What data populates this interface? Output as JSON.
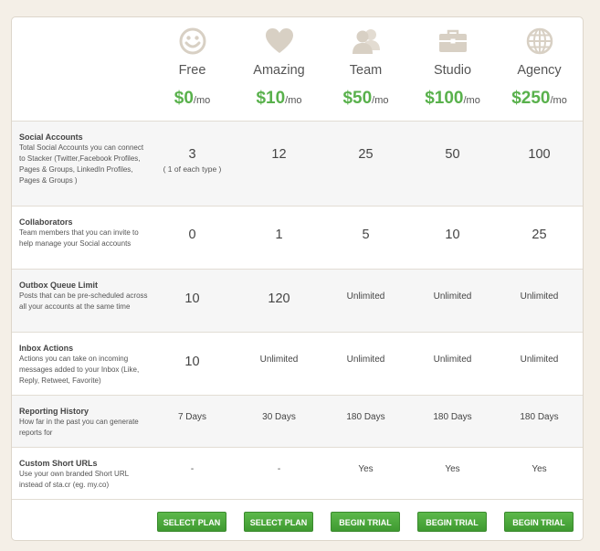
{
  "plans": [
    {
      "name": "Free",
      "price": "$0",
      "period": "/mo",
      "icon": "smiley-icon",
      "button": "SELECT PLAN"
    },
    {
      "name": "Amazing",
      "price": "$10",
      "period": "/mo",
      "icon": "heart-icon",
      "button": "SELECT PLAN"
    },
    {
      "name": "Team",
      "price": "$50",
      "period": "/mo",
      "icon": "team-icon",
      "button": "BEGIN TRIAL"
    },
    {
      "name": "Studio",
      "price": "$100",
      "period": "/mo",
      "icon": "briefcase-icon",
      "button": "BEGIN TRIAL"
    },
    {
      "name": "Agency",
      "price": "$250",
      "period": "/mo",
      "icon": "globe-icon",
      "button": "BEGIN TRIAL"
    }
  ],
  "features": [
    {
      "title": "Social Accounts",
      "desc": "Total Social Accounts you can connect to Stacker (Twitter,Facebook Profiles, Pages & Groups, LinkedIn Profiles, Pages & Groups )",
      "values": [
        "3",
        "12",
        "25",
        "50",
        "100"
      ],
      "note": "( 1 of each type )"
    },
    {
      "title": "Collaborators",
      "desc": "Team members that you can invite to help manage your Social accounts",
      "values": [
        "0",
        "1",
        "5",
        "10",
        "25"
      ]
    },
    {
      "title": "Outbox Queue Limit",
      "desc": "Posts that can be pre-scheduled across all your accounts at the same time",
      "values": [
        "10",
        "120",
        "Unlimited",
        "Unlimited",
        "Unlimited"
      ]
    },
    {
      "title": "Inbox Actions",
      "desc": "Actions you can take on incoming messages added to your Inbox (Like, Reply, Retweet, Favorite)",
      "values": [
        "10",
        "Unlimited",
        "Unlimited",
        "Unlimited",
        "Unlimited"
      ]
    },
    {
      "title": "Reporting History",
      "desc": "How far in the past you can generate reports for",
      "values": [
        "7 Days",
        "30 Days",
        "180 Days",
        "180 Days",
        "180 Days"
      ]
    },
    {
      "title": "Custom Short URLs",
      "desc": "Use your own branded Short URL instead of sta.cr (eg. my.co)",
      "values": [
        "-",
        "-",
        "Yes",
        "Yes",
        "Yes"
      ]
    }
  ],
  "colors": {
    "accent": "#59b14c",
    "icon": "#d8d0c4",
    "background": "#f4efe7"
  }
}
